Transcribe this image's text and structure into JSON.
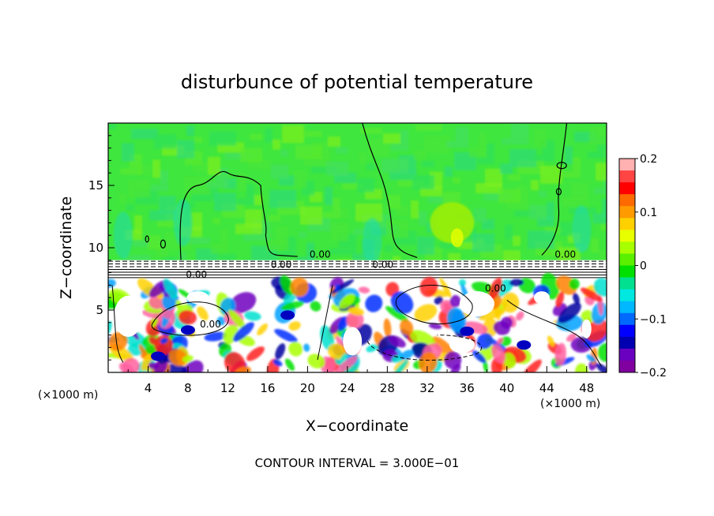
{
  "chart_data": {
    "type": "heatmap",
    "title": "disturbunce of potential temperature",
    "xlabel": "X−coordinate",
    "ylabel": "Z−coordinate",
    "x_unit_left": "(×1000 m)",
    "x_unit_right": "(×1000 m)",
    "xlim": [
      0,
      50
    ],
    "ylim": [
      0,
      20
    ],
    "x_ticks": [
      4,
      8,
      12,
      16,
      20,
      24,
      28,
      32,
      36,
      40,
      44,
      48
    ],
    "x_tick_labels": [
      "4",
      "8",
      "12",
      "16",
      "20",
      "24",
      "28",
      "32",
      "36",
      "40",
      "44",
      "48"
    ],
    "y_ticks": [
      5,
      10,
      15
    ],
    "y_tick_labels": [
      "5",
      "10",
      "15"
    ],
    "contour_interval_text": "CONTOUR INTERVAL = 3.000E−01",
    "contour_labels": [
      "0.00",
      "0.00",
      "0.00",
      "0.00",
      "0.00",
      "0.00",
      "0.00"
    ],
    "colorbar": {
      "range": [
        -0.2,
        0.2
      ],
      "tick_values": [
        0.2,
        0.1,
        0,
        -0.1,
        -0.2
      ],
      "tick_labels": [
        "0.2",
        "0.1",
        "0",
        "−0.1",
        "−0.2"
      ],
      "colors": [
        "#ffb0b0",
        "#ff4444",
        "#ff0000",
        "#ff6a00",
        "#ff9a00",
        "#ffd000",
        "#e8ff00",
        "#a8ff00",
        "#5af000",
        "#00e000",
        "#00e090",
        "#00e8e0",
        "#00b8ff",
        "#006aff",
        "#0000ff",
        "#0000b0",
        "#6a00c0",
        "#8000a0"
      ]
    },
    "grid": false,
    "legend": "colorbar-right"
  }
}
